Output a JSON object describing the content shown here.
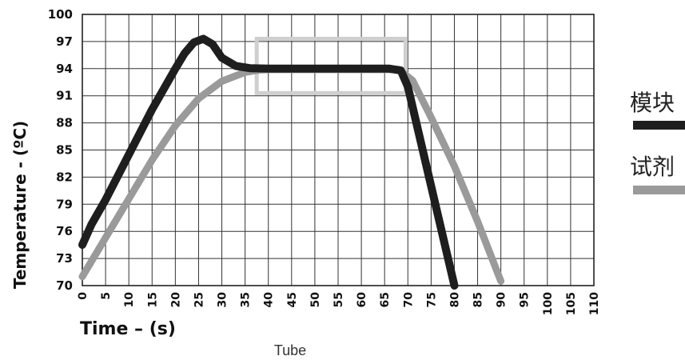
{
  "chart_data": {
    "type": "line",
    "xlabel": "Time – (s)",
    "ylabel": "Temperature - (ºC)",
    "caption": "Tube",
    "xlim": [
      0,
      110
    ],
    "ylim": [
      70,
      100
    ],
    "x_ticks": [
      0,
      5,
      10,
      15,
      20,
      25,
      30,
      35,
      40,
      45,
      50,
      55,
      60,
      65,
      70,
      75,
      80,
      85,
      90,
      95,
      100,
      105,
      110
    ],
    "y_ticks": [
      70,
      73,
      76,
      79,
      82,
      85,
      88,
      91,
      94,
      97,
      100
    ],
    "grid": true,
    "legend_position": "right",
    "series": [
      {
        "name": "模块",
        "color": "#1e1e1e",
        "points": [
          [
            0,
            74.5
          ],
          [
            2,
            76.8
          ],
          [
            5,
            79.5
          ],
          [
            10,
            84.5
          ],
          [
            15,
            89.5
          ],
          [
            20,
            94
          ],
          [
            22,
            95.7
          ],
          [
            24,
            96.9
          ],
          [
            26,
            97.3
          ],
          [
            28,
            96.7
          ],
          [
            30,
            95.2
          ],
          [
            33,
            94.3
          ],
          [
            36,
            94.05
          ],
          [
            40,
            94
          ],
          [
            50,
            94
          ],
          [
            60,
            94
          ],
          [
            66,
            94
          ],
          [
            68.5,
            93.8
          ],
          [
            70,
            92
          ],
          [
            75,
            81
          ],
          [
            80,
            70
          ]
        ]
      },
      {
        "name": "试剂",
        "color": "#9a9a9a",
        "points": [
          [
            0,
            71
          ],
          [
            5,
            75.3
          ],
          [
            10,
            79.6
          ],
          [
            15,
            83.9
          ],
          [
            20,
            87.7
          ],
          [
            25,
            90.7
          ],
          [
            30,
            92.6
          ],
          [
            35,
            93.6
          ],
          [
            38,
            93.85
          ],
          [
            40,
            93.9
          ],
          [
            50,
            93.9
          ],
          [
            60,
            93.9
          ],
          [
            68,
            93.9
          ],
          [
            71,
            92.7
          ],
          [
            75,
            88.6
          ],
          [
            80,
            83.2
          ],
          [
            85,
            77.1
          ],
          [
            90,
            70.5
          ]
        ]
      }
    ],
    "annotation_box": {
      "x": [
        37.5,
        69.5
      ],
      "y": [
        91.3,
        97.3
      ],
      "color": "#cfcfcf"
    }
  }
}
